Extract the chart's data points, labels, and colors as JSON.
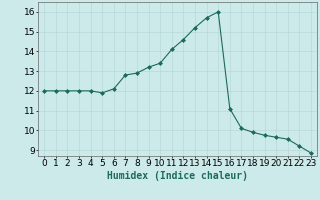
{
  "x": [
    0,
    1,
    2,
    3,
    4,
    5,
    6,
    7,
    8,
    9,
    10,
    11,
    12,
    13,
    14,
    15,
    16,
    17,
    18,
    19,
    20,
    21,
    22,
    23
  ],
  "y": [
    12,
    12,
    12,
    12,
    12,
    11.9,
    12.1,
    12.8,
    12.9,
    13.2,
    13.4,
    14.1,
    14.6,
    15.2,
    15.7,
    16.0,
    11.1,
    10.1,
    9.9,
    9.75,
    9.65,
    9.55,
    9.2,
    8.85
  ],
  "line_color": "#1a6b5a",
  "marker": "D",
  "marker_size": 2.0,
  "bg_color": "#cdeaea",
  "grid_color": "#b8d8d8",
  "xlabel": "Humidex (Indice chaleur)",
  "xlim": [
    -0.5,
    23.5
  ],
  "ylim": [
    8.7,
    16.5
  ],
  "yticks": [
    9,
    10,
    11,
    12,
    13,
    14,
    15,
    16
  ],
  "xticks": [
    0,
    1,
    2,
    3,
    4,
    5,
    6,
    7,
    8,
    9,
    10,
    11,
    12,
    13,
    14,
    15,
    16,
    17,
    18,
    19,
    20,
    21,
    22,
    23
  ],
  "xlabel_fontsize": 7,
  "tick_fontsize": 6.5,
  "linewidth": 0.8
}
